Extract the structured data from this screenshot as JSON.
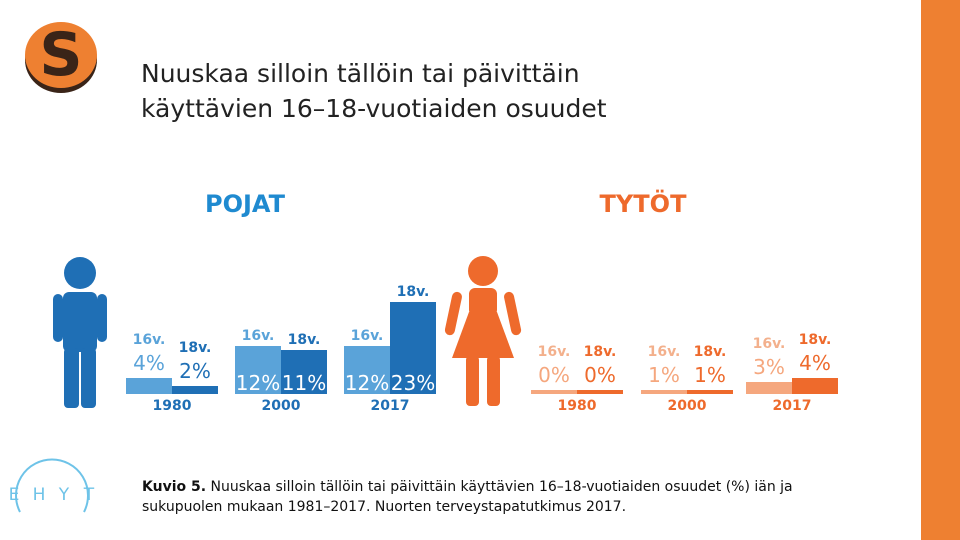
{
  "title": {
    "line1": "Nuuskaa silloin tällöin tai päivittäin",
    "line2": "käyttävien 16–18-vuotiaiden osuudet"
  },
  "caption": {
    "label": "Kuvio 5.",
    "text": " Nuuskaa silloin tällöin tai päivittäin käyttävien 16–18-vuotiaiden osuudet (%) iän ja sukupuolen mukaan 1981–2017. Nuorten terveystapatutkimus 2017."
  },
  "logo": {
    "brand": "EHYT",
    "letters": [
      "E",
      "H",
      "Y",
      "T"
    ]
  },
  "colors": {
    "boys_light": "#5aa3d9",
    "boys_dark": "#1f6fb5",
    "boys_heading": "#1f8ad0",
    "girls_light": "#f5a77e",
    "girls_dark": "#ee6a2c",
    "girls_heading": "#ee6a2c",
    "girls_label": "#f3b08c",
    "side_bar": "#ee8031"
  },
  "icons": {
    "logo": "snus-s-logo-icon",
    "boy": "boy-figure-icon",
    "girl": "girl-figure-icon"
  },
  "chart_data": {
    "type": "bar",
    "categories": [
      "1980",
      "2000",
      "2017"
    ],
    "groups": [
      {
        "heading": "POJAT",
        "series": [
          {
            "name": "16v.",
            "values": [
              4,
              12,
              12
            ]
          },
          {
            "name": "18v.",
            "values": [
              2,
              11,
              23
            ]
          }
        ]
      },
      {
        "heading": "TYTÖT",
        "series": [
          {
            "name": "16v.",
            "values": [
              0,
              1,
              3
            ]
          },
          {
            "name": "18v.",
            "values": [
              0,
              1,
              4
            ]
          }
        ]
      }
    ],
    "value_suffix": "%",
    "ylim": [
      0,
      23
    ]
  }
}
